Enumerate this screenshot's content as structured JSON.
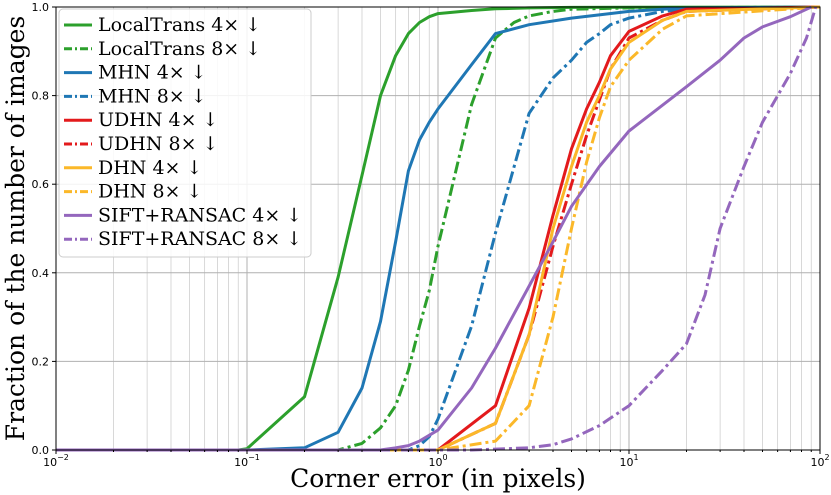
{
  "chart_data": {
    "type": "line",
    "xscale": "log",
    "xlim": [
      0.01,
      100
    ],
    "ylim": [
      0,
      1
    ],
    "xlabel": "Corner error (in pixels)",
    "ylabel": "Fraction of the number of images",
    "grid": true,
    "legend_position": "top-left",
    "x_ticks": [
      {
        "value": 0.01,
        "base": "10",
        "exp": "−2"
      },
      {
        "value": 0.1,
        "base": "10",
        "exp": "−1"
      },
      {
        "value": 1,
        "base": "10",
        "exp": "0"
      },
      {
        "value": 10,
        "base": "10",
        "exp": "1"
      },
      {
        "value": 100,
        "base": "10",
        "exp": "2"
      }
    ],
    "y_ticks": [
      "0.0",
      "0.2",
      "0.4",
      "0.6",
      "0.8",
      "1.0"
    ],
    "series": [
      {
        "name": "LocalTrans  4× ↓",
        "color": "#2ca02c",
        "dash": "solid",
        "x": [
          0.01,
          0.09,
          0.1,
          0.2,
          0.3,
          0.4,
          0.5,
          0.6,
          0.7,
          0.8,
          0.9,
          1,
          1.5,
          2,
          3,
          5,
          100
        ],
        "y": [
          0,
          0,
          0.003,
          0.12,
          0.39,
          0.62,
          0.8,
          0.89,
          0.94,
          0.965,
          0.978,
          0.985,
          0.992,
          0.996,
          0.998,
          0.999,
          1
        ]
      },
      {
        "name": "LocalTrans  8× ↓",
        "color": "#2ca02c",
        "dash": "dashdot",
        "x": [
          0.01,
          0.3,
          0.4,
          0.5,
          0.6,
          0.7,
          0.8,
          0.9,
          1,
          1.5,
          2,
          2.5,
          3,
          4,
          5,
          10,
          100
        ],
        "y": [
          0,
          0,
          0.015,
          0.05,
          0.1,
          0.18,
          0.28,
          0.36,
          0.46,
          0.78,
          0.93,
          0.965,
          0.98,
          0.99,
          0.995,
          0.998,
          1
        ]
      },
      {
        "name": "MHN  4× ↓",
        "color": "#1f77b4",
        "dash": "solid",
        "x": [
          0.01,
          0.1,
          0.2,
          0.3,
          0.4,
          0.5,
          0.6,
          0.7,
          0.8,
          0.9,
          1,
          1.5,
          2,
          3,
          5,
          10,
          15,
          20,
          100
        ],
        "y": [
          0,
          0,
          0.005,
          0.04,
          0.14,
          0.29,
          0.47,
          0.63,
          0.7,
          0.74,
          0.77,
          0.87,
          0.94,
          0.96,
          0.975,
          0.99,
          0.995,
          0.998,
          1
        ]
      },
      {
        "name": "MHN  8× ↓",
        "color": "#1f77b4",
        "dash": "dashdot",
        "x": [
          0.01,
          0.7,
          0.8,
          0.9,
          1,
          1.5,
          2,
          3,
          4,
          5,
          6,
          7,
          8,
          10,
          15,
          20,
          100
        ],
        "y": [
          0,
          0,
          0.01,
          0.03,
          0.07,
          0.28,
          0.49,
          0.76,
          0.84,
          0.88,
          0.92,
          0.94,
          0.96,
          0.975,
          0.99,
          0.995,
          1
        ]
      },
      {
        "name": "UDHN  4× ↓",
        "color": "#e31a1c",
        "dash": "solid",
        "x": [
          0.01,
          1,
          2,
          3,
          4,
          5,
          6,
          7,
          8,
          10,
          15,
          20,
          100
        ],
        "y": [
          0,
          0,
          0.1,
          0.32,
          0.53,
          0.68,
          0.77,
          0.83,
          0.89,
          0.945,
          0.98,
          0.995,
          1
        ]
      },
      {
        "name": "UDHN  8× ↓",
        "color": "#e31a1c",
        "dash": "dashdot",
        "x": [
          0.01,
          1,
          2,
          3,
          4,
          5,
          6,
          7,
          8,
          10,
          15,
          20,
          100
        ],
        "y": [
          0,
          0,
          0.06,
          0.26,
          0.46,
          0.6,
          0.71,
          0.79,
          0.86,
          0.93,
          0.97,
          0.99,
          1
        ]
      },
      {
        "name": "DHN  4× ↓",
        "color": "#fbb829",
        "dash": "solid",
        "x": [
          0.01,
          1,
          2,
          3,
          4,
          5,
          6,
          7,
          8,
          10,
          15,
          20,
          100
        ],
        "y": [
          0,
          0,
          0.06,
          0.26,
          0.5,
          0.64,
          0.74,
          0.8,
          0.86,
          0.92,
          0.97,
          0.99,
          1
        ]
      },
      {
        "name": "DHN  8× ↓",
        "color": "#fbb829",
        "dash": "dashdot",
        "x": [
          0.01,
          1,
          2,
          3,
          4,
          5,
          6,
          7,
          8,
          10,
          15,
          20,
          100
        ],
        "y": [
          0,
          0,
          0.02,
          0.1,
          0.3,
          0.5,
          0.65,
          0.75,
          0.82,
          0.88,
          0.95,
          0.98,
          1
        ]
      },
      {
        "name": "SIFT+RANSAC  4× ↓",
        "color": "#9467bd",
        "dash": "solid",
        "x": [
          0.01,
          0.5,
          0.6,
          0.7,
          0.8,
          1,
          1.5,
          2,
          3,
          4,
          5,
          7,
          10,
          20,
          30,
          40,
          50,
          70,
          90
        ],
        "y": [
          0,
          0,
          0.005,
          0.01,
          0.02,
          0.045,
          0.14,
          0.23,
          0.37,
          0.47,
          0.55,
          0.64,
          0.72,
          0.82,
          0.88,
          0.93,
          0.955,
          0.978,
          1
        ]
      },
      {
        "name": "SIFT+RANSAC  8× ↓",
        "color": "#9467bd",
        "dash": "dashdot",
        "x": [
          0.01,
          1.5,
          2,
          3,
          4,
          5,
          7,
          10,
          15,
          20,
          25,
          30,
          40,
          50,
          70,
          85,
          95
        ],
        "y": [
          0,
          0,
          0.002,
          0.005,
          0.012,
          0.025,
          0.055,
          0.1,
          0.18,
          0.24,
          0.35,
          0.5,
          0.64,
          0.74,
          0.85,
          0.93,
          1
        ]
      }
    ]
  }
}
